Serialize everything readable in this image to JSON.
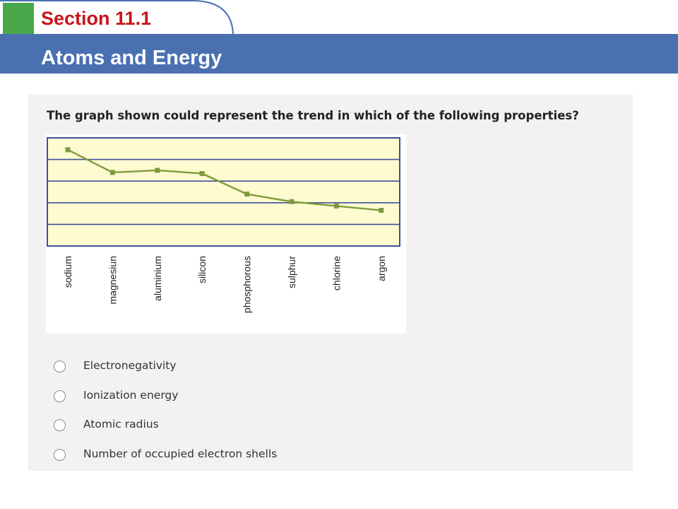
{
  "header": {
    "section": "Section 11.1",
    "title": "Atoms and Energy",
    "colors": {
      "accent_green": "#4aa84a",
      "section_red": "#c8141a",
      "band_blue": "#4a70b0"
    }
  },
  "question": {
    "text": "The graph shown could represent the trend in which of the following properties?",
    "options": [
      {
        "label": "Electronegativity",
        "selected": false
      },
      {
        "label": "Ionization energy",
        "selected": false
      },
      {
        "label": "Atomic radius",
        "selected": false
      },
      {
        "label": "Number of occupied electron shells",
        "selected": false
      }
    ]
  },
  "chart_data": {
    "type": "line",
    "categories": [
      "sodium",
      "magnesiun",
      "aluminium",
      "silicon",
      "phosphorous",
      "sulphur",
      "chlorine",
      "argon"
    ],
    "series": [
      {
        "values": [
          4.45,
          3.4,
          3.5,
          3.35,
          2.4,
          2.05,
          1.85,
          1.65
        ]
      }
    ],
    "ylim": [
      0,
      5
    ],
    "grid": true,
    "xlabel": "",
    "ylabel": "",
    "colors": {
      "line": "#7f9a3c",
      "plot_bg": "#fefbd0",
      "frame": "#3f4f9a"
    }
  }
}
